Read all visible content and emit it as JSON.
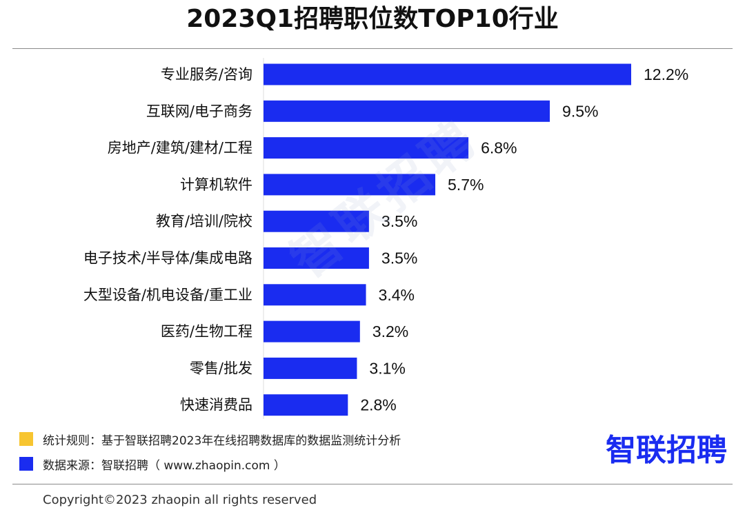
{
  "watermark": "智联招聘",
  "chart_data": {
    "type": "bar",
    "orientation": "horizontal",
    "title": "2023Q1招聘职位数TOP10行业",
    "categories": [
      "专业服务/咨询",
      "互联网/电子商务",
      "房地产/建筑/建材/工程",
      "计算机软件",
      "教育/培训/院校",
      "电子技术/半导体/集成电路",
      "大型设备/机电设备/重工业",
      "医药/生物工程",
      "零售/批发",
      "快速消费品"
    ],
    "values": [
      12.2,
      9.5,
      6.8,
      5.7,
      3.5,
      3.5,
      3.4,
      3.2,
      3.1,
      2.8
    ],
    "labels": [
      "12.2%",
      "9.5%",
      "6.8%",
      "5.7%",
      "3.5%",
      "3.5%",
      "3.4%",
      "3.2%",
      "3.1%",
      "2.8%"
    ],
    "unit": "%",
    "xlim": [
      0,
      12.2
    ],
    "bar_color": "#1a2cf0",
    "grid": false,
    "legend": "none"
  },
  "notes": {
    "rule_text": "统计规则：基于智联招聘2023年在线招聘数据库的数据监测统计分析",
    "rule_color": "#f7c530",
    "source_text": "数据来源：智联招聘（ www.zhaopin.com ）",
    "source_color": "#1a2cf0"
  },
  "brand": {
    "logo_text": "智联招聘",
    "color": "#1a2cf0",
    "accent_color": "#f7c530"
  },
  "footer": {
    "copyright": "Copyright©2023 zhaopin all rights reserved"
  }
}
